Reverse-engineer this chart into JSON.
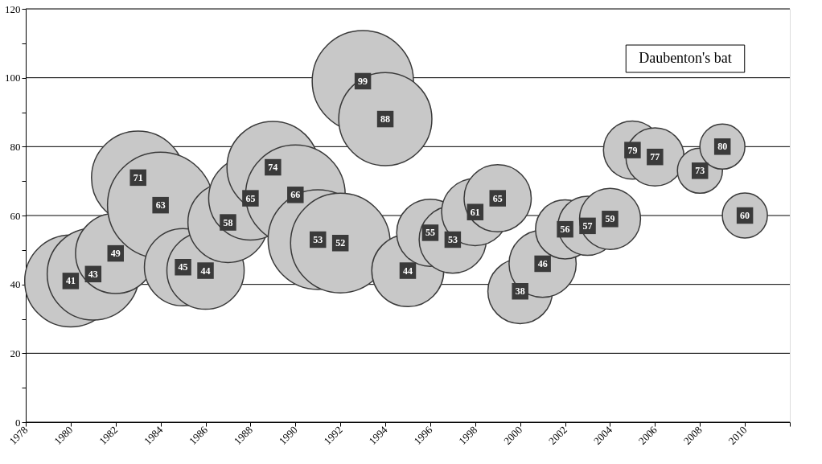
{
  "chart_data": {
    "type": "bubble",
    "x": [
      1980,
      1981,
      1982,
      1983,
      1984,
      1985,
      1986,
      1987,
      1988,
      1989,
      1990,
      1991,
      1992,
      1993,
      1994,
      1995,
      1996,
      1997,
      1998,
      1999,
      2000,
      2001,
      2002,
      2003,
      2004,
      2005,
      2006,
      2008,
      2009,
      2010
    ],
    "series": [
      {
        "color": "#c8c8c8",
        "values": [
          41,
          43,
          49,
          71,
          63,
          45,
          44,
          58,
          65,
          74,
          66,
          53,
          52,
          99,
          88,
          44,
          55,
          53,
          61,
          65,
          38,
          46,
          56,
          57,
          59,
          79,
          77,
          73,
          80,
          60
        ],
        "sizes": [
          0.75,
          0.75,
          0.57,
          0.77,
          1,
          0.53,
          0.53,
          0.57,
          0.62,
          0.75,
          0.88,
          0.88,
          0.88,
          0.91,
          0.77,
          0.46,
          0.4,
          0.4,
          0.4,
          0.4,
          0.37,
          0.4,
          0.31,
          0.31,
          0.33,
          0.3,
          0.3,
          0.18,
          0.18,
          0.18
        ]
      }
    ],
    "data_labels": true,
    "annotations": [
      "Daubenton's bat"
    ],
    "xlim": [
      1978,
      2012
    ],
    "xticks": [
      1978,
      1980,
      1982,
      1984,
      1986,
      1988,
      1990,
      1992,
      1994,
      1996,
      1998,
      2000,
      2002,
      2004,
      2006,
      2008,
      2010,
      {
        "value": 2012,
        "label": null
      }
    ],
    "ylim": [
      0,
      120
    ],
    "yticks": [
      0,
      {
        "value": 10,
        "label": null
      },
      20,
      {
        "value": 30,
        "label": null
      },
      40,
      {
        "value": 50,
        "label": null
      },
      60,
      {
        "value": 70,
        "label": null
      },
      80,
      {
        "value": 90,
        "label": null
      },
      100,
      {
        "value": 110,
        "label": null
      },
      120
    ],
    "grid": "y"
  }
}
